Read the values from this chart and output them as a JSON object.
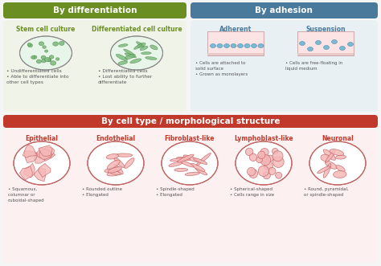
{
  "bg_color": "#f5f5f5",
  "section1_color": "#6b8e23",
  "section2_color": "#4a7a9b",
  "section3_color": "#c0392b",
  "section1_label": "By differentiation",
  "section2_label": "By adhesion",
  "section3_label": "By cell type / morphological structure",
  "diff_bg": "#f0f4e8",
  "adh_bg": "#e8f0f4",
  "morph_bg": "#fdf0f0",
  "green_text": "#6b8e23",
  "blue_text": "#4a7a9b",
  "red_text": "#c0392b",
  "bullet_color": "#555555",
  "sub_titles": [
    "Stem cell culture",
    "Differentiated cell culture",
    "Adherent",
    "Suspension"
  ],
  "morph_titles": [
    "Epithelial",
    "Endothelial",
    "Fibroblast-like",
    "Lymphoblast-like",
    "Neuronal"
  ],
  "stem_bullets": [
    "Undifferentiated cells",
    "Able to differentiate into\nother cell types"
  ],
  "diff_bullets": [
    "Differentiated cells",
    "Lost ability to further\ndifferentiate"
  ],
  "adh_bullets": [
    "Cells are attached to\nsolid surface",
    "Grown as monolayers"
  ],
  "susp_bullets": [
    "Cells are free-floating in\nliquid medium"
  ],
  "epi_bullets": [
    "Squamous,\ncolumnar or\ncuboidal-shaped"
  ],
  "endo_bullets": [
    "Rounded outline",
    "Elongated"
  ],
  "fibro_bullets": [
    "Spindle-shaped",
    "Elongated"
  ],
  "lympho_bullets": [
    "Spherical-shaped",
    "Cells range in size"
  ],
  "neuro_bullets": [
    "Round, pyramidal,\nor spindle-shaped"
  ]
}
